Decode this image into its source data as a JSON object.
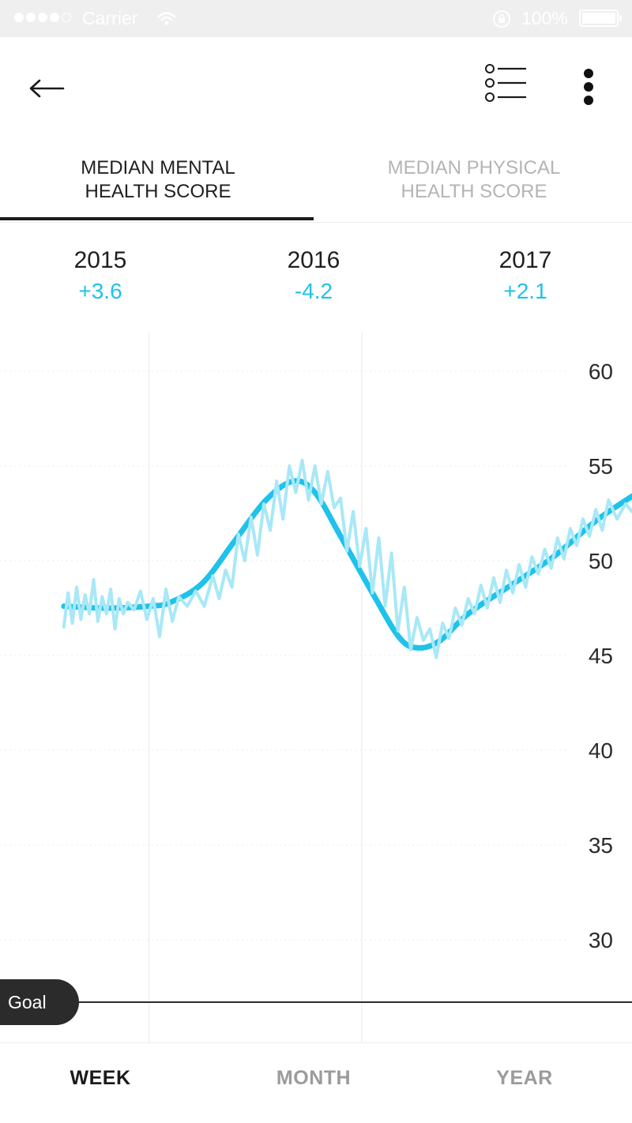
{
  "status_bar": {
    "carrier": "Carrier",
    "battery": "100%",
    "signal_icon": "signal-dots-icon",
    "wifi_icon": "wifi-icon",
    "lock_icon": "rotation-lock-icon"
  },
  "toolbar": {
    "back_icon": "back-arrow-icon",
    "list_icon": "list-icon",
    "more_icon": "more-vertical-icon"
  },
  "tabs": [
    {
      "line1": "MEDIAN MENTAL",
      "line2": "HEALTH SCORE",
      "active": true
    },
    {
      "line1": "MEDIAN PHYSICAL",
      "line2": "HEALTH SCORE",
      "active": false
    }
  ],
  "years": [
    {
      "year": "2015",
      "delta": "+3.6"
    },
    {
      "year": "2016",
      "delta": "-4.2"
    },
    {
      "year": "2017",
      "delta": "+2.1"
    }
  ],
  "goal_label": "Goal",
  "range_tabs": [
    {
      "label": "WEEK",
      "active": true
    },
    {
      "label": "MONTH",
      "active": false
    },
    {
      "label": "YEAR",
      "active": false
    }
  ],
  "colors": {
    "accent": "#1ec2ea",
    "raw_line": "#a8e8f7",
    "text_dark": "#1e1e1e",
    "tab_inactive": "#b4b4b4",
    "goal_bg": "#2b2b2b"
  },
  "chart_data": {
    "type": "line",
    "ylim": [
      27.5,
      62.5
    ],
    "y_ticks": [
      60,
      55,
      50,
      45,
      40,
      35,
      30
    ],
    "x_domain": [
      -0.2,
      2.77
    ],
    "x_dividers": [
      0.5,
      1.5
    ],
    "series": [
      {
        "kind": "smoothed",
        "points": [
          [
            0.1,
            47.6
          ],
          [
            0.3,
            47.5
          ],
          [
            0.5,
            47.6
          ],
          [
            0.6,
            47.8
          ],
          [
            0.75,
            48.8
          ],
          [
            0.9,
            51.0
          ],
          [
            1.05,
            53.2
          ],
          [
            1.18,
            54.2
          ],
          [
            1.28,
            53.6
          ],
          [
            1.4,
            51.3
          ],
          [
            1.55,
            48.3
          ],
          [
            1.68,
            45.9
          ],
          [
            1.77,
            45.4
          ],
          [
            1.87,
            45.8
          ],
          [
            2.0,
            47.2
          ],
          [
            2.2,
            48.7
          ],
          [
            2.4,
            50.2
          ],
          [
            2.6,
            52.1
          ],
          [
            2.77,
            53.4
          ]
        ]
      },
      {
        "kind": "raw",
        "points": [
          [
            0.1,
            46.5
          ],
          [
            0.12,
            48.3
          ],
          [
            0.14,
            46.7
          ],
          [
            0.16,
            48.6
          ],
          [
            0.18,
            46.9
          ],
          [
            0.2,
            48.2
          ],
          [
            0.22,
            47.2
          ],
          [
            0.24,
            49.0
          ],
          [
            0.26,
            46.8
          ],
          [
            0.28,
            48.1
          ],
          [
            0.3,
            47.2
          ],
          [
            0.32,
            48.5
          ],
          [
            0.34,
            46.4
          ],
          [
            0.36,
            48.0
          ],
          [
            0.38,
            47.2
          ],
          [
            0.4,
            47.8
          ],
          [
            0.43,
            47.4
          ],
          [
            0.46,
            48.4
          ],
          [
            0.49,
            46.9
          ],
          [
            0.52,
            48.0
          ],
          [
            0.55,
            46.0
          ],
          [
            0.58,
            48.5
          ],
          [
            0.61,
            46.8
          ],
          [
            0.64,
            48.1
          ],
          [
            0.68,
            47.6
          ],
          [
            0.72,
            48.4
          ],
          [
            0.76,
            47.6
          ],
          [
            0.8,
            49.2
          ],
          [
            0.83,
            48.0
          ],
          [
            0.86,
            49.5
          ],
          [
            0.89,
            48.6
          ],
          [
            0.92,
            51.4
          ],
          [
            0.95,
            50.0
          ],
          [
            0.98,
            52.3
          ],
          [
            1.01,
            50.3
          ],
          [
            1.04,
            53.0
          ],
          [
            1.07,
            51.6
          ],
          [
            1.1,
            54.2
          ],
          [
            1.13,
            52.2
          ],
          [
            1.16,
            55.0
          ],
          [
            1.19,
            53.6
          ],
          [
            1.22,
            55.3
          ],
          [
            1.25,
            53.2
          ],
          [
            1.28,
            55.0
          ],
          [
            1.31,
            53.0
          ],
          [
            1.34,
            54.7
          ],
          [
            1.37,
            52.8
          ],
          [
            1.4,
            53.3
          ],
          [
            1.43,
            50.5
          ],
          [
            1.46,
            52.6
          ],
          [
            1.49,
            49.7
          ],
          [
            1.52,
            51.7
          ],
          [
            1.55,
            48.3
          ],
          [
            1.58,
            51.2
          ],
          [
            1.61,
            47.6
          ],
          [
            1.64,
            50.4
          ],
          [
            1.67,
            46.3
          ],
          [
            1.7,
            48.6
          ],
          [
            1.73,
            45.3
          ],
          [
            1.76,
            47.0
          ],
          [
            1.79,
            45.8
          ],
          [
            1.82,
            46.4
          ],
          [
            1.85,
            44.9
          ],
          [
            1.88,
            46.7
          ],
          [
            1.91,
            45.9
          ],
          [
            1.94,
            47.5
          ],
          [
            1.97,
            46.6
          ],
          [
            2.0,
            48.0
          ],
          [
            2.03,
            47.2
          ],
          [
            2.06,
            48.7
          ],
          [
            2.09,
            47.5
          ],
          [
            2.12,
            49.1
          ],
          [
            2.15,
            47.8
          ],
          [
            2.18,
            49.5
          ],
          [
            2.21,
            48.3
          ],
          [
            2.24,
            49.8
          ],
          [
            2.27,
            48.6
          ],
          [
            2.3,
            50.2
          ],
          [
            2.33,
            49.3
          ],
          [
            2.36,
            50.6
          ],
          [
            2.39,
            49.6
          ],
          [
            2.42,
            51.2
          ],
          [
            2.45,
            50.1
          ],
          [
            2.48,
            51.7
          ],
          [
            2.51,
            50.8
          ],
          [
            2.54,
            52.2
          ],
          [
            2.57,
            51.3
          ],
          [
            2.6,
            52.7
          ],
          [
            2.63,
            51.6
          ],
          [
            2.66,
            53.2
          ],
          [
            2.7,
            52.2
          ],
          [
            2.74,
            53.0
          ],
          [
            2.77,
            52.6
          ]
        ]
      }
    ]
  }
}
